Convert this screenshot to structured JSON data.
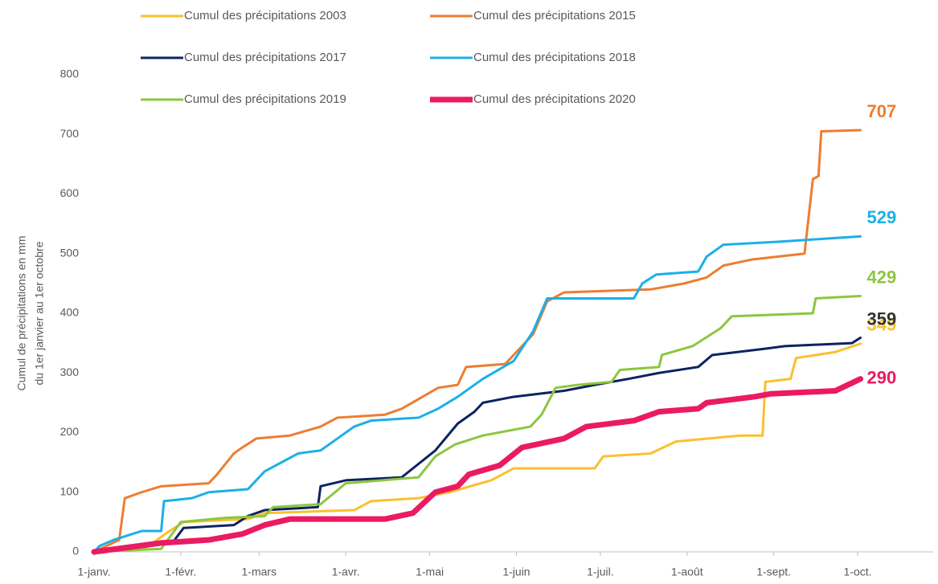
{
  "chart_data": {
    "type": "line",
    "y_label": [
      "Cumul de précipitations en mm",
      "du 1er janvier au 1er octobre"
    ],
    "xlim": [
      0,
      300
    ],
    "ylim": [
      0,
      800
    ],
    "xticks": [
      {
        "value": 0,
        "label": "1-janv."
      },
      {
        "value": 31,
        "label": "1-févr."
      },
      {
        "value": 59,
        "label": "1-mars"
      },
      {
        "value": 90,
        "label": "1-avr."
      },
      {
        "value": 120,
        "label": "1-mai"
      },
      {
        "value": 151,
        "label": "1-juin"
      },
      {
        "value": 181,
        "label": "1-juil."
      },
      {
        "value": 212,
        "label": "1-août"
      },
      {
        "value": 243,
        "label": "1-sept."
      },
      {
        "value": 273,
        "label": "1-oct."
      }
    ],
    "yticks": [
      0,
      100,
      200,
      300,
      400,
      500,
      600,
      700,
      800
    ],
    "grid": false,
    "series": [
      {
        "name": "Cumul des précipitations 2003",
        "color": "#fbc02d",
        "label_color": "#fbc02d",
        "line_width": 3,
        "x": [
          0,
          18,
          27,
          32,
          55,
          61,
          93,
          99,
          116,
          127,
          142,
          150,
          179,
          182,
          199,
          208,
          231,
          239,
          240,
          249,
          251,
          265,
          274
        ],
        "values": [
          0,
          5,
          35,
          50,
          55,
          65,
          70,
          85,
          90,
          100,
          120,
          140,
          140,
          160,
          165,
          185,
          195,
          195,
          285,
          290,
          325,
          335,
          349
        ]
      },
      {
        "name": "Cumul des précipitations 2015",
        "color": "#ed7d31",
        "label_color": "#ed7d31",
        "line_width": 3,
        "x": [
          0,
          9,
          11,
          17,
          24,
          41,
          44,
          50,
          53,
          58,
          70,
          81,
          87,
          104,
          110,
          123,
          130,
          133,
          147,
          157,
          162,
          168,
          199,
          211,
          219,
          225,
          235,
          254,
          257,
          259,
          260,
          274
        ],
        "values": [
          0,
          20,
          90,
          100,
          110,
          115,
          130,
          165,
          175,
          190,
          195,
          210,
          225,
          230,
          240,
          275,
          280,
          310,
          315,
          365,
          420,
          435,
          440,
          450,
          460,
          480,
          490,
          500,
          625,
          630,
          705,
          707
        ]
      },
      {
        "name": "Cumul des précipitations 2017",
        "color": "#0d2361",
        "label_color": "#333333",
        "line_width": 3,
        "x": [
          0,
          12,
          28,
          32,
          50,
          55,
          61,
          80,
          81,
          90,
          110,
          122,
          130,
          136,
          139,
          150,
          168,
          179,
          191,
          202,
          216,
          221,
          239,
          247,
          271,
          274
        ],
        "values": [
          0,
          5,
          15,
          40,
          45,
          60,
          70,
          75,
          110,
          120,
          125,
          170,
          215,
          235,
          250,
          260,
          270,
          280,
          290,
          300,
          310,
          330,
          340,
          345,
          350,
          359
        ]
      },
      {
        "name": "Cumul des précipitations 2018",
        "color": "#1ab0e8",
        "label_color": "#1ab0e8",
        "line_width": 3,
        "x": [
          0,
          2,
          7,
          17,
          24,
          25,
          35,
          41,
          55,
          61,
          67,
          73,
          81,
          87,
          93,
          99,
          116,
          123,
          130,
          139,
          150,
          157,
          162,
          193,
          196,
          201,
          216,
          219,
          225,
          245,
          274
        ],
        "values": [
          0,
          10,
          20,
          35,
          35,
          85,
          90,
          100,
          105,
          135,
          150,
          165,
          170,
          190,
          210,
          220,
          225,
          240,
          260,
          290,
          320,
          370,
          425,
          425,
          450,
          465,
          470,
          495,
          515,
          520,
          529
        ]
      },
      {
        "name": "Cumul des précipitations 2019",
        "color": "#8dc63f",
        "label_color": "#8dc63f",
        "line_width": 3,
        "x": [
          0,
          24,
          31,
          47,
          61,
          64,
          81,
          90,
          116,
          122,
          129,
          139,
          156,
          160,
          165,
          173,
          185,
          188,
          202,
          203,
          214,
          224,
          228,
          257,
          258,
          274
        ],
        "values": [
          0,
          5,
          50,
          57,
          60,
          75,
          80,
          115,
          125,
          160,
          180,
          195,
          210,
          230,
          275,
          280,
          285,
          305,
          310,
          330,
          345,
          375,
          395,
          400,
          425,
          429
        ]
      },
      {
        "name": "Cumul des précipitations 2020",
        "color": "#ea1a63",
        "label_color": "#ea1a63",
        "line_width": 7,
        "x": [
          0,
          24,
          41,
          53,
          61,
          70,
          104,
          114,
          122,
          130,
          134,
          145,
          153,
          168,
          176,
          193,
          202,
          216,
          219,
          236,
          242,
          265,
          274
        ],
        "values": [
          0,
          15,
          20,
          30,
          45,
          55,
          55,
          65,
          100,
          110,
          130,
          145,
          175,
          190,
          210,
          220,
          235,
          240,
          250,
          260,
          265,
          270,
          290
        ]
      }
    ]
  }
}
